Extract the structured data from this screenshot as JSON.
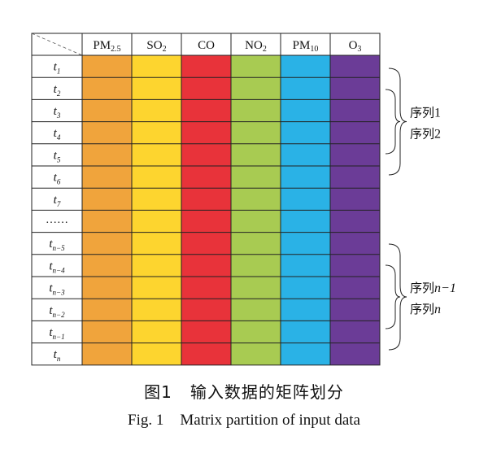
{
  "columns": [
    {
      "base": "PM",
      "sub": "2.5",
      "color": "#f0a43c"
    },
    {
      "base": "SO",
      "sub": "2",
      "color": "#fdd52f"
    },
    {
      "base": "CO",
      "sub": "",
      "color": "#e8333a"
    },
    {
      "base": "NO",
      "sub": "2",
      "color": "#a8cb52"
    },
    {
      "base": "PM",
      "sub": "10",
      "color": "#2ab2e6"
    },
    {
      "base": "O",
      "sub": "3",
      "color": "#6b3c97"
    }
  ],
  "rows": [
    {
      "base": "t",
      "sub": "1"
    },
    {
      "base": "t",
      "sub": "2"
    },
    {
      "base": "t",
      "sub": "3"
    },
    {
      "base": "t",
      "sub": "4"
    },
    {
      "base": "t",
      "sub": "5"
    },
    {
      "base": "t",
      "sub": "6"
    },
    {
      "base": "t",
      "sub": "7"
    },
    {
      "base": "……",
      "sub": ""
    },
    {
      "base": "t",
      "sub": "n−5"
    },
    {
      "base": "t",
      "sub": "n−4"
    },
    {
      "base": "t",
      "sub": "n−3"
    },
    {
      "base": "t",
      "sub": "n−2"
    },
    {
      "base": "t",
      "sub": "n−1"
    },
    {
      "base": "t",
      "sub": "n"
    }
  ],
  "brackets": [
    {
      "labels": [
        {
          "prefix": "序列",
          "suffix": "1",
          "italic": false
        },
        {
          "prefix": "序列",
          "suffix": "2",
          "italic": false
        }
      ]
    },
    {
      "labels": [
        {
          "prefix": "序列",
          "suffix": "n−1",
          "italic": true
        },
        {
          "prefix": "序列",
          "suffix": "n",
          "italic": true
        }
      ]
    }
  ],
  "caption": {
    "cn_number": "图1",
    "cn_title": "输入数据的矩阵划分",
    "en_number": "Fig. 1",
    "en_title": "Matrix partition of input data"
  }
}
